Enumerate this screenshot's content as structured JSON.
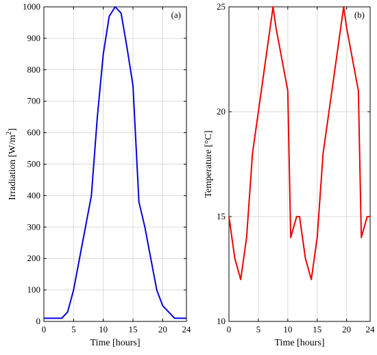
{
  "chart_data": [
    {
      "type": "line",
      "panel_label": "(a)",
      "xlabel": "Time [hours]",
      "ylabel": "Irradiation [W/m",
      "ylabel_sup": "2",
      "ylabel_end": "]",
      "xlim": [
        0,
        24
      ],
      "ylim": [
        0,
        1000
      ],
      "xticks": [
        0,
        5,
        10,
        15,
        20,
        24
      ],
      "yticks": [
        0,
        100,
        200,
        300,
        400,
        500,
        600,
        700,
        800,
        900,
        1000
      ],
      "grid": true,
      "series": [
        {
          "color": "#0000dd",
          "x": [
            0,
            1,
            2,
            3,
            4,
            5,
            6,
            7,
            8,
            9,
            10,
            11,
            12,
            13,
            14,
            15,
            16,
            17,
            18,
            19,
            20,
            21,
            22,
            23,
            24
          ],
          "y": [
            10,
            10,
            10,
            10,
            30,
            100,
            200,
            300,
            400,
            650,
            850,
            970,
            1000,
            980,
            870,
            750,
            380,
            300,
            200,
            100,
            50,
            30,
            10,
            10,
            10
          ]
        }
      ]
    },
    {
      "type": "line",
      "panel_label": "(b)",
      "xlabel": "Time [hours]",
      "ylabel": "Temperature [°C]",
      "xlim": [
        0,
        24
      ],
      "ylim": [
        10,
        25
      ],
      "xticks": [
        0,
        5,
        10,
        15,
        20,
        24
      ],
      "yticks": [
        10,
        15,
        20,
        25
      ],
      "grid": true,
      "series": [
        {
          "color": "#ee0000",
          "x": [
            0,
            1,
            2,
            3,
            4,
            5,
            6,
            7,
            7.5,
            8,
            9,
            10,
            10.5,
            11.5,
            12,
            13,
            14,
            15,
            16,
            17,
            18,
            19,
            19.5,
            20,
            21,
            22,
            22.5,
            23.5,
            24
          ],
          "y": [
            15,
            13,
            12,
            14,
            18,
            20,
            22,
            24,
            25,
            24,
            22.5,
            21,
            14,
            15,
            15,
            13,
            12,
            14,
            18,
            20,
            22,
            24,
            25,
            24,
            22.5,
            21,
            14,
            15,
            15
          ]
        }
      ]
    }
  ]
}
